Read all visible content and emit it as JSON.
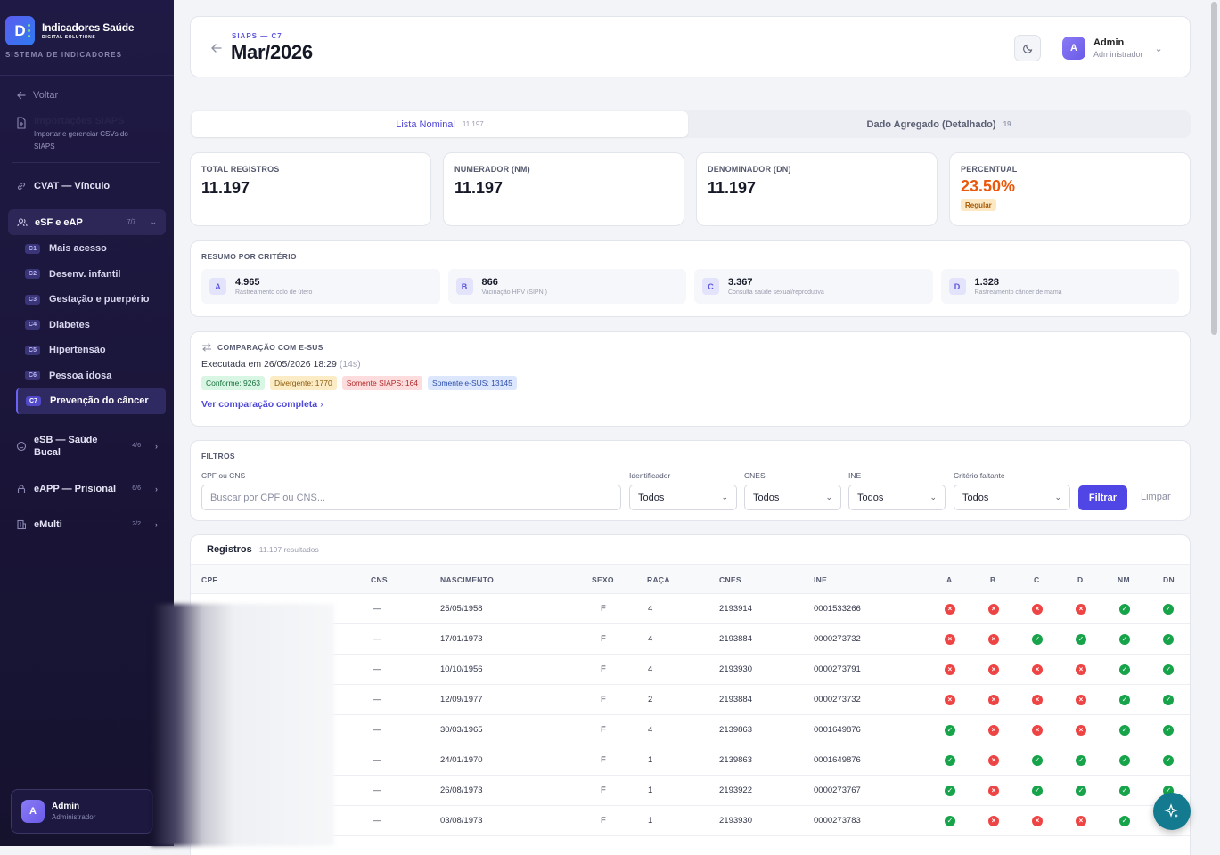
{
  "brand": {
    "title": "Indicadores Saúde",
    "subtitle": "DIGITAL SOLUTIONS",
    "logo_letter": "D",
    "system_label": "SISTEMA DE INDICADORES"
  },
  "sidebar": {
    "back_label": "Voltar",
    "import": {
      "title": "Importações SIAPS",
      "desc_1": "Importar e gerenciar CSVs do",
      "desc_2": "SIAPS"
    },
    "cvat": {
      "label": "CVAT — Vínculo"
    },
    "esf": {
      "label": "eSF e eAP",
      "count": "7/7"
    },
    "items": [
      {
        "code": "C1",
        "label": "Mais acesso"
      },
      {
        "code": "C2",
        "label": "Desenv. infantil"
      },
      {
        "code": "C3",
        "label": "Gestação e puerpério"
      },
      {
        "code": "C4",
        "label": "Diabetes"
      },
      {
        "code": "C5",
        "label": "Hipertensão"
      },
      {
        "code": "C6",
        "label": "Pessoa idosa"
      },
      {
        "code": "C7",
        "label": "Prevenção do câncer"
      }
    ],
    "esb": {
      "label_1": "eSB — Saúde",
      "label_2": "Bucal",
      "count": "4/6"
    },
    "eapp": {
      "label": "eAPP — Prisional",
      "count": "6/6"
    },
    "emulti": {
      "label": "eMulti",
      "count": "2/2"
    },
    "user": {
      "initial": "A",
      "name": "Admin",
      "role": "Administrador"
    }
  },
  "header": {
    "crumb": "SIAPS — C7",
    "title": "Mar/2026",
    "user": {
      "initial": "A",
      "name": "Admin",
      "role": "Administrador"
    }
  },
  "tabs": [
    {
      "label": "Lista Nominal",
      "count": "11.197"
    },
    {
      "label": "Dado Agregado (Detalhado)",
      "count": "19"
    }
  ],
  "kpis": [
    {
      "label": "TOTAL REGISTROS",
      "value": "11.197"
    },
    {
      "label": "NUMERADOR (NM)",
      "value": "11.197"
    },
    {
      "label": "DENOMINADOR (DN)",
      "value": "11.197"
    },
    {
      "label": "PERCENTUAL",
      "value": "23.50%",
      "badge": "Regular"
    }
  ],
  "criteria": {
    "title": "RESUMO POR CRITÉRIO",
    "items": [
      {
        "letter": "A",
        "value": "4.965",
        "desc": "Rastreamento colo de útero"
      },
      {
        "letter": "B",
        "value": "866",
        "desc": "Vacinação HPV (SIPNI)"
      },
      {
        "letter": "C",
        "value": "3.367",
        "desc": "Consulta saúde sexual/reprodutiva"
      },
      {
        "letter": "D",
        "value": "1.328",
        "desc": "Rastreamento câncer de mama"
      }
    ]
  },
  "comparison": {
    "title": "COMPARAÇÃO COM E-SUS",
    "executed": "Executada em 26/05/2026 18:29",
    "duration": "(14s)",
    "chips": {
      "conforme": "Conforme: 9263",
      "divergente": "Divergente: 1770",
      "somente_siaps": "Somente SIAPS: 164",
      "somente_esus": "Somente e-SUS: 13145"
    },
    "link": "Ver comparação completa"
  },
  "filters": {
    "title": "FILTROS",
    "cpf_label": "CPF ou CNS",
    "cpf_placeholder": "Buscar por CPF ou CNS...",
    "ident_label": "Identificador",
    "ident_value": "Todos",
    "cnes_label": "CNES",
    "cnes_value": "Todos",
    "ine_label": "INE",
    "ine_value": "Todos",
    "crit_label": "Critério faltante",
    "crit_value": "Todos",
    "filter_btn": "Filtrar",
    "clear_btn": "Limpar"
  },
  "table": {
    "title": "Registros",
    "count": "11.197 resultados",
    "headers": {
      "cpf": "CPF",
      "cns": "CNS",
      "nasc": "NASCIMENTO",
      "sexo": "SEXO",
      "raca": "RAÇA",
      "cnes": "CNES",
      "ine": "INE",
      "a": "A",
      "b": "B",
      "c": "C",
      "d": "D",
      "nm": "NM",
      "dn": "DN"
    },
    "rows": [
      {
        "cns": "—",
        "nasc": "25/05/1958",
        "sexo": "F",
        "raca": "4",
        "cnes": "2193914",
        "ine": "0001533266",
        "flags": [
          0,
          0,
          0,
          0,
          1,
          1
        ]
      },
      {
        "cns": "—",
        "nasc": "17/01/1973",
        "sexo": "F",
        "raca": "4",
        "cnes": "2193884",
        "ine": "0000273732",
        "flags": [
          0,
          0,
          1,
          1,
          1,
          1
        ]
      },
      {
        "cns": "—",
        "nasc": "10/10/1956",
        "sexo": "F",
        "raca": "4",
        "cnes": "2193930",
        "ine": "0000273791",
        "flags": [
          0,
          0,
          0,
          0,
          1,
          1
        ]
      },
      {
        "cns": "—",
        "nasc": "12/09/1977",
        "sexo": "F",
        "raca": "2",
        "cnes": "2193884",
        "ine": "0000273732",
        "flags": [
          0,
          0,
          0,
          0,
          1,
          1
        ]
      },
      {
        "cns": "—",
        "nasc": "30/03/1965",
        "sexo": "F",
        "raca": "4",
        "cnes": "2139863",
        "ine": "0001649876",
        "flags": [
          1,
          0,
          0,
          0,
          1,
          1
        ]
      },
      {
        "cns": "—",
        "nasc": "24/01/1970",
        "sexo": "F",
        "raca": "1",
        "cnes": "2139863",
        "ine": "0001649876",
        "flags": [
          1,
          0,
          1,
          1,
          1,
          1
        ]
      },
      {
        "cns": "—",
        "nasc": "26/08/1973",
        "sexo": "F",
        "raca": "1",
        "cnes": "2193922",
        "ine": "0000273767",
        "flags": [
          1,
          0,
          1,
          1,
          1,
          1
        ]
      },
      {
        "cns": "—",
        "nasc": "03/08/1973",
        "sexo": "F",
        "raca": "1",
        "cnes": "2193930",
        "ine": "0000273783",
        "flags": [
          1,
          0,
          0,
          0,
          1,
          1
        ]
      }
    ]
  },
  "colors": {
    "accent": "#4f46e5",
    "ok": "#16a34a",
    "fail": "#ef4444",
    "percent": "#ea580c",
    "fab": "#137a8f"
  },
  "icons": {
    "back": "arrow-left-icon",
    "theme": "moon-icon",
    "fab": "sparkles-icon"
  }
}
